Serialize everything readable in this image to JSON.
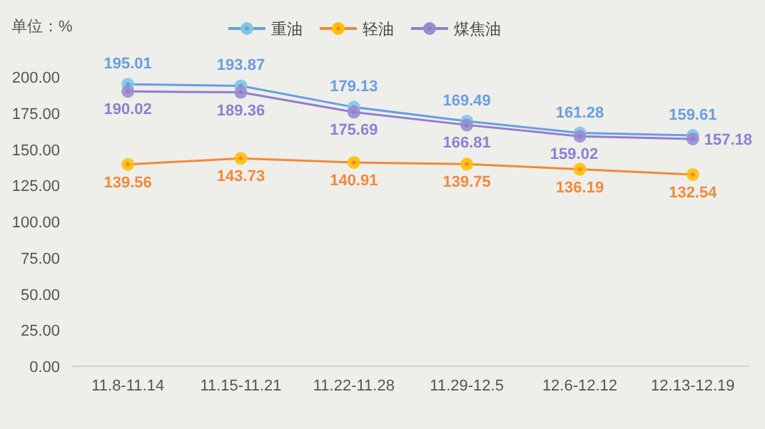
{
  "chart_data": {
    "type": "line",
    "ylabel": "单位：%",
    "categories": [
      "11.8-11.14",
      "11.15-11.21",
      "11.22-11.28",
      "11.29-12.5",
      "12.6-12.12",
      "12.13-12.19"
    ],
    "series": [
      {
        "name": "重油",
        "color": "#6a9ee0",
        "values": [
          195.01,
          193.87,
          179.13,
          169.49,
          161.28,
          159.61
        ]
      },
      {
        "name": "轻油",
        "color": "#f08a3c",
        "values": [
          139.56,
          143.73,
          140.91,
          139.75,
          136.19,
          132.54
        ]
      },
      {
        "name": "煤焦油",
        "color": "#8f7fcf",
        "values": [
          190.02,
          189.36,
          175.69,
          166.81,
          159.02,
          157.18
        ]
      }
    ],
    "ylim": [
      0,
      200
    ],
    "yticks": [
      {
        "value": 0,
        "label": "0.00"
      },
      {
        "value": 25,
        "label": "25.00"
      },
      {
        "value": 50,
        "label": "50.00"
      },
      {
        "value": 75,
        "label": "75.00"
      },
      {
        "value": 100,
        "label": "100.00"
      },
      {
        "value": 125,
        "label": "125.00"
      },
      {
        "value": 150,
        "label": "150.00"
      },
      {
        "value": 175,
        "label": "175.00"
      },
      {
        "value": 200,
        "label": "200.00"
      }
    ],
    "grid": false,
    "legend": "top",
    "marker": "circle",
    "line_style": "solid",
    "data_labels": true
  }
}
